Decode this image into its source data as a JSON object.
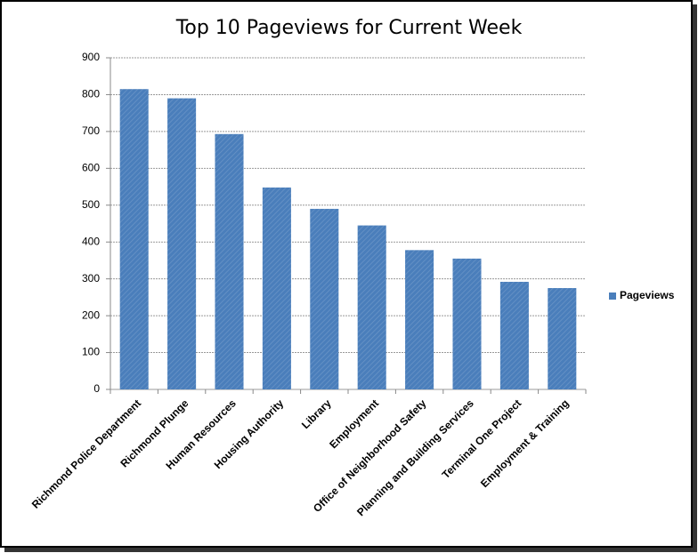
{
  "chart_data": {
    "type": "bar",
    "title": "Top 10 Pageviews for Current Week",
    "categories": [
      "Richmond Police Department",
      "Richmond Plunge",
      "Human Resources",
      "Housing Authority",
      "Library",
      "Employment",
      "Office of Neighborhood Safety",
      "Planning and Building Services",
      "Terminal One Project",
      "Employment & Training"
    ],
    "series": [
      {
        "name": "Pageviews",
        "color": "#4a7ebb",
        "values": [
          815,
          790,
          693,
          548,
          490,
          445,
          378,
          355,
          292,
          275
        ]
      }
    ],
    "ylim": [
      0,
      900
    ],
    "yticks": [
      0,
      100,
      200,
      300,
      400,
      500,
      600,
      700,
      800,
      900
    ],
    "grid": true,
    "legend": "right"
  }
}
